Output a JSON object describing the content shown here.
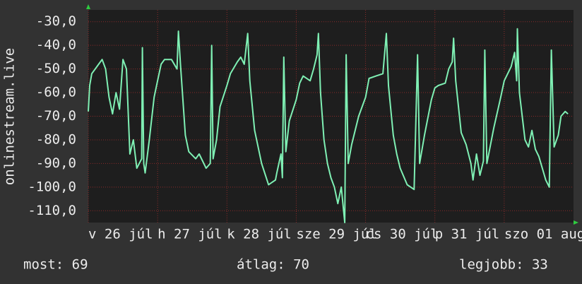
{
  "chart_data": {
    "type": "line",
    "ylabel": "onlinestream.live",
    "xlim": [
      0,
      7
    ],
    "ylim": [
      -115,
      -25
    ],
    "xticks": [
      {
        "value": 0,
        "label": "v 26 júl"
      },
      {
        "value": 1,
        "label": "h 27 júl"
      },
      {
        "value": 2,
        "label": "k 28 júl"
      },
      {
        "value": 3,
        "label": "sze 29 júl"
      },
      {
        "value": 4,
        "label": "cs 30 júl"
      },
      {
        "value": 5,
        "label": "p 31 júl"
      },
      {
        "value": 6,
        "label": "szo 01 aug"
      }
    ],
    "yticks": [
      {
        "value": -30,
        "label": "-30,0"
      },
      {
        "value": -40,
        "label": "-40,0"
      },
      {
        "value": -50,
        "label": "-50,0"
      },
      {
        "value": -60,
        "label": "-60,0"
      },
      {
        "value": -70,
        "label": "-70,0"
      },
      {
        "value": -80,
        "label": "-80,0"
      },
      {
        "value": -90,
        "label": "-90,0"
      },
      {
        "value": -100,
        "label": "-100,0"
      },
      {
        "value": -110,
        "label": "-110,0"
      }
    ],
    "grid": true,
    "x": [
      0,
      0.02,
      0.05,
      0.1,
      0.15,
      0.2,
      0.25,
      0.3,
      0.35,
      0.4,
      0.45,
      0.5,
      0.55,
      0.6,
      0.65,
      0.7,
      0.77,
      0.78,
      0.8,
      0.82,
      0.88,
      0.95,
      1.0,
      1.05,
      1.1,
      1.2,
      1.28,
      1.3,
      1.33,
      1.4,
      1.45,
      1.55,
      1.6,
      1.7,
      1.76,
      1.78,
      1.8,
      1.85,
      1.9,
      2.0,
      2.05,
      2.15,
      2.2,
      2.25,
      2.3,
      2.33,
      2.4,
      2.5,
      2.6,
      2.7,
      2.72,
      2.78,
      2.8,
      2.82,
      2.85,
      2.9,
      3.0,
      3.05,
      3.1,
      3.2,
      3.25,
      3.3,
      3.32,
      3.35,
      3.4,
      3.45,
      3.5,
      3.55,
      3.6,
      3.65,
      3.7,
      3.72,
      3.75,
      3.8,
      3.9,
      4.0,
      4.05,
      4.15,
      4.25,
      4.3,
      4.33,
      4.4,
      4.45,
      4.5,
      4.6,
      4.7,
      4.75,
      4.78,
      4.85,
      4.95,
      5.0,
      5.05,
      5.15,
      5.2,
      5.25,
      5.27,
      5.3,
      5.38,
      5.45,
      5.52,
      5.55,
      5.6,
      5.65,
      5.7,
      5.72,
      5.75,
      5.85,
      5.95,
      6.0,
      6.05,
      6.1,
      6.15,
      6.18,
      6.19,
      6.22,
      6.3,
      6.35,
      6.4,
      6.45,
      6.5,
      6.55,
      6.6,
      6.65,
      6.68,
      6.72,
      6.78,
      6.82,
      6.88,
      6.92
    ],
    "series": [
      {
        "color": "#7ff0b4",
        "values": [
          -68,
          -57,
          -52,
          -50,
          -48,
          -46,
          -50,
          -62,
          -69,
          -60,
          -67,
          -46,
          -50,
          -86,
          -80,
          -92,
          -88,
          -41,
          -90,
          -94,
          -80,
          -62,
          -55,
          -48,
          -46,
          -46,
          -50,
          -34,
          -48,
          -78,
          -85,
          -88,
          -86,
          -92,
          -90,
          -40,
          -88,
          -80,
          -66,
          -57,
          -52,
          -47,
          -45,
          -48,
          -35,
          -55,
          -76,
          -90,
          -99,
          -97,
          -94,
          -86,
          -96,
          -45,
          -85,
          -72,
          -63,
          -56,
          -53,
          -55,
          -50,
          -44,
          -35,
          -60,
          -80,
          -90,
          -96,
          -100,
          -107,
          -100,
          -115,
          -44,
          -90,
          -82,
          -70,
          -62,
          -54,
          -53,
          -52,
          -35,
          -57,
          -78,
          -86,
          -92,
          -99,
          -101,
          -44,
          -90,
          -78,
          -63,
          -58,
          -57,
          -56,
          -50,
          -47,
          -37,
          -55,
          -77,
          -82,
          -90,
          -97,
          -86,
          -95,
          -89,
          -42,
          -90,
          -75,
          -62,
          -55,
          -52,
          -49,
          -43,
          -55,
          -33,
          -60,
          -80,
          -83,
          -76,
          -84,
          -87,
          -92,
          -97,
          -100,
          -42,
          -83,
          -78,
          -70,
          -68,
          -69
        ]
      }
    ],
    "stats": [
      "most: 69",
      "átlag: 70",
      "legjobb: 33"
    ]
  }
}
